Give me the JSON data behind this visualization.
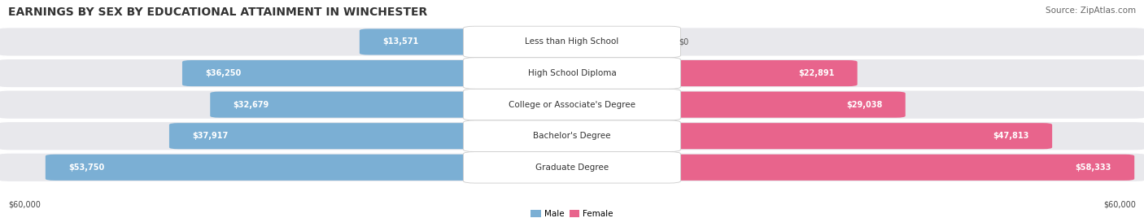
{
  "title": "EARNINGS BY SEX BY EDUCATIONAL ATTAINMENT IN WINCHESTER",
  "source": "Source: ZipAtlas.com",
  "categories": [
    "Less than High School",
    "High School Diploma",
    "College or Associate's Degree",
    "Bachelor's Degree",
    "Graduate Degree"
  ],
  "male_values": [
    13571,
    36250,
    32679,
    37917,
    53750
  ],
  "female_values": [
    0,
    22891,
    29038,
    47813,
    58333
  ],
  "max_value": 60000,
  "male_color": "#7bafd4",
  "female_color": "#e8648c",
  "male_label": "Male",
  "female_label": "Female",
  "fig_bg": "#ffffff",
  "row_bg": "#e8e8ec",
  "label_box_bg": "#ffffff",
  "title_color": "#333333",
  "source_color": "#666666",
  "value_inside_color": "#ffffff",
  "value_outside_color": "#555555",
  "title_fontsize": 10,
  "source_fontsize": 7.5,
  "cat_fontsize": 7.5,
  "val_fontsize": 7,
  "axis_fontsize": 7,
  "bottom_label": "$60,000"
}
